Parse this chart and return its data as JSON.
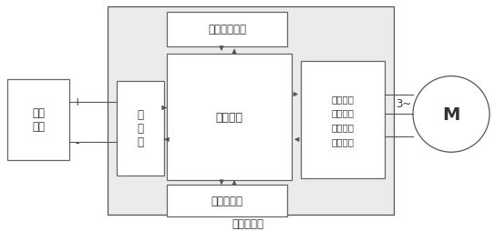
{
  "fig_width": 5.43,
  "fig_height": 2.55,
  "dpi": 100,
  "bg_color": "#ffffff",
  "box_edge_color": "#666666",
  "box_fill_color": "#ffffff",
  "controller_bg": "#ebebeb",
  "font_size": 8.5,
  "dc_source_label": "直流\n电源",
  "dc_plus": "+",
  "dc_minus": "-",
  "slave_chip_label": "从\n芯\n片",
  "main_chip_label": "主控芯片",
  "power_monitor_label": "供电电源监控",
  "watchdog_label": "外部看门狗",
  "monitor_label": "电压监控\n电流监控\n温度监控\n速度监控",
  "controller_label": "电机控制器",
  "three_phase_label": "3~",
  "motor_label": "M",
  "arrow_color": "#555555",
  "line_color": "#555555",
  "text_color": "#333333"
}
